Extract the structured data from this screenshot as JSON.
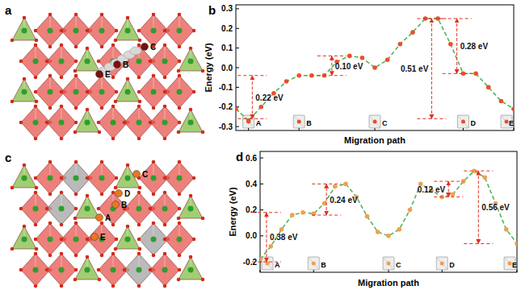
{
  "structures": [
    {
      "title": "a",
      "site_labels": [
        "E",
        "B",
        "C"
      ]
    },
    {
      "title": "c",
      "site_labels": [
        "A",
        "B",
        "C",
        "D",
        "E"
      ]
    }
  ],
  "chart_data": [
    {
      "type": "line",
      "title": "b",
      "x_label": "Migration path",
      "y_label": "Energy (eV)",
      "x": [
        0,
        1,
        2,
        3,
        4,
        5,
        6,
        7,
        8,
        9,
        10,
        11,
        12,
        13,
        14,
        15,
        16,
        17,
        18,
        19,
        20,
        21,
        22
      ],
      "series": [
        {
          "color": "#e8502a",
          "marker": "circle",
          "line_style": "dashed",
          "values": [
            -0.21,
            -0.27,
            -0.2,
            -0.13,
            -0.07,
            -0.04,
            -0.04,
            -0.04,
            0.03,
            0.06,
            0.05,
            0.0,
            0.04,
            0.12,
            0.18,
            0.25,
            0.25,
            0.12,
            -0.03,
            -0.03,
            -0.1,
            -0.17,
            -0.21
          ]
        }
      ],
      "xlim": [
        0,
        22
      ],
      "ylim": [
        -0.32,
        0.32
      ],
      "yticks": [
        -0.3,
        -0.2,
        -0.1,
        {
          "value": 0,
          "label": "0.0"
        },
        0.1,
        0.2,
        0.3
      ],
      "tick_labels": "y",
      "annotations": [
        {
          "text": "0.22 eV",
          "x": 1.3,
          "from": -0.26,
          "to": -0.04
        },
        {
          "text": "0.10 eV",
          "x": 7.6,
          "from": -0.04,
          "to": 0.06
        },
        {
          "text": "0.51 eV",
          "x": 15.5,
          "from": 0.25,
          "to": -0.26
        },
        {
          "text": "0.28 eV",
          "x": 17.5,
          "from": 0.25,
          "to": -0.03
        }
      ],
      "point_labels": [
        {
          "text": "A",
          "x": 1
        },
        {
          "text": "B",
          "x": 5
        },
        {
          "text": "C",
          "x": 11
        },
        {
          "text": "D",
          "x": 18
        },
        {
          "text": "E",
          "x": 22
        }
      ]
    },
    {
      "type": "line",
      "title": "d",
      "x_label": "Migration path",
      "y_label": "Energy (eV)",
      "x": [
        0,
        1,
        2,
        3,
        4,
        5,
        6,
        7,
        8,
        9,
        10,
        11,
        12,
        13,
        14,
        15,
        16,
        17,
        18,
        19,
        20,
        21,
        22,
        23,
        24
      ],
      "series": [
        {
          "color": "#f0a050",
          "marker": "circle",
          "line_style": "dashed",
          "values": [
            -0.18,
            -0.08,
            0.05,
            0.16,
            0.18,
            0.17,
            0.25,
            0.38,
            0.4,
            0.3,
            0.15,
            0.03,
            0.0,
            0.05,
            0.2,
            0.4,
            0.35,
            0.3,
            0.32,
            0.42,
            0.5,
            0.45,
            0.25,
            0.05,
            -0.06
          ]
        }
      ],
      "xlim": [
        0,
        24
      ],
      "ylim": [
        -0.28,
        0.65
      ],
      "yticks": [
        -0.2,
        {
          "value": 0,
          "label": "0.0"
        },
        0.2,
        0.4,
        0.6
      ],
      "tick_labels": "y",
      "annotations": [
        {
          "text": "0.38 eV",
          "x": 0.6,
          "from": -0.2,
          "to": 0.18
        },
        {
          "text": "0.24 eV",
          "x": 6.2,
          "from": 0.16,
          "to": 0.4
        },
        {
          "text": "0.12 eV",
          "x": 17.6,
          "from": 0.3,
          "to": 0.42
        },
        {
          "text": "0.56 eV",
          "x": 20.4,
          "from": 0.5,
          "to": -0.06
        }
      ],
      "point_labels": [
        {
          "text": "A",
          "x": 0
        },
        {
          "text": "B",
          "x": 5
        },
        {
          "text": "C",
          "x": 12
        },
        {
          "text": "D",
          "x": 17
        },
        {
          "text": "E",
          "x": 24
        }
      ]
    }
  ]
}
